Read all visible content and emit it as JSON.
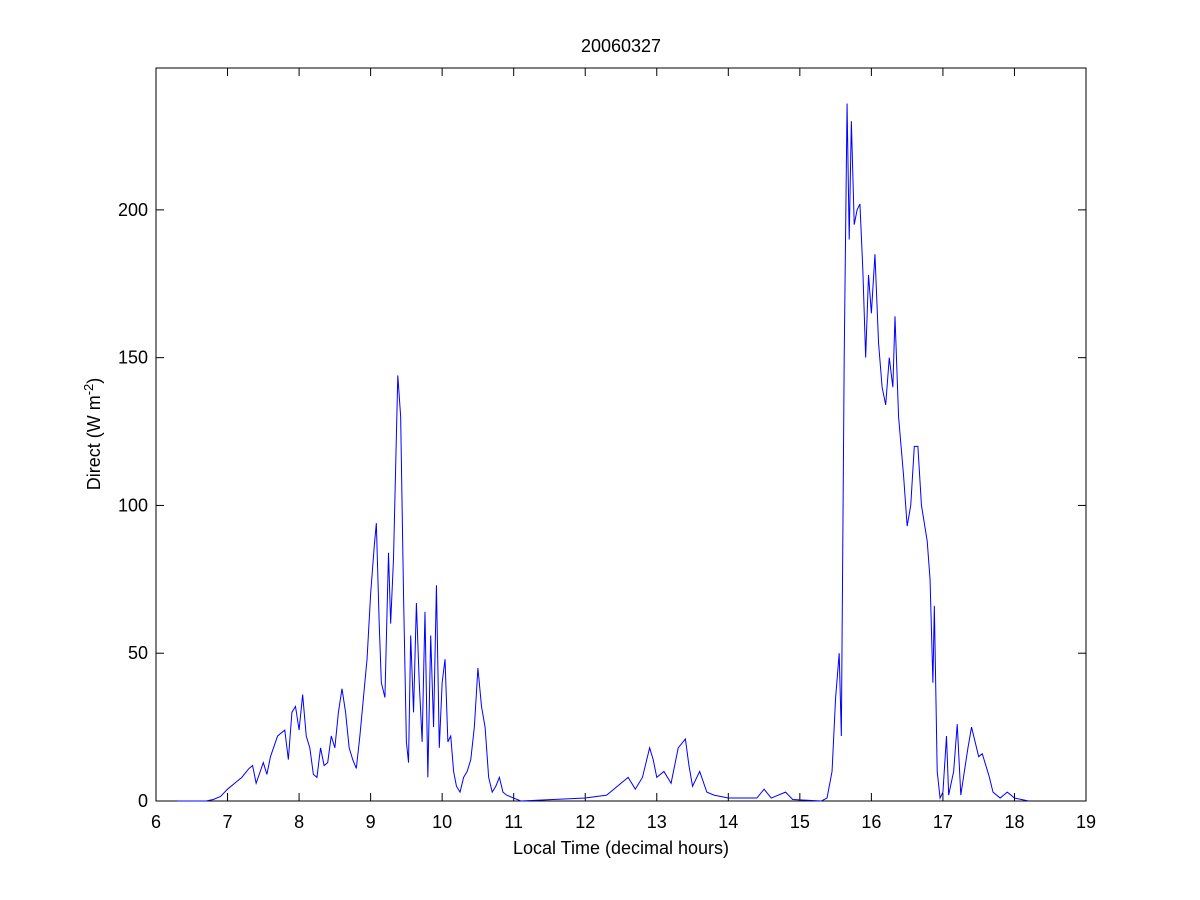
{
  "chart_data": {
    "type": "line",
    "title": "20060327",
    "xlabel": "Local Time (decimal hours)",
    "ylabel": {
      "text": "Direct (W m",
      "sup": "-2",
      "end": ")"
    },
    "x": [
      6.3,
      6.7,
      6.8,
      6.9,
      7.0,
      7.1,
      7.2,
      7.3,
      7.35,
      7.4,
      7.5,
      7.55,
      7.6,
      7.7,
      7.8,
      7.85,
      7.9,
      7.95,
      8.0,
      8.05,
      8.1,
      8.15,
      8.2,
      8.25,
      8.3,
      8.35,
      8.4,
      8.45,
      8.5,
      8.55,
      8.6,
      8.65,
      8.7,
      8.75,
      8.8,
      8.85,
      8.9,
      8.95,
      9.0,
      9.05,
      9.08,
      9.12,
      9.15,
      9.2,
      9.25,
      9.28,
      9.32,
      9.38,
      9.42,
      9.46,
      9.5,
      9.53,
      9.56,
      9.6,
      9.64,
      9.68,
      9.72,
      9.76,
      9.8,
      9.84,
      9.88,
      9.92,
      9.96,
      10.0,
      10.04,
      10.08,
      10.12,
      10.16,
      10.2,
      10.25,
      10.3,
      10.35,
      10.4,
      10.45,
      10.5,
      10.55,
      10.6,
      10.65,
      10.7,
      10.75,
      10.8,
      10.85,
      10.9,
      11.0,
      11.1,
      12.0,
      12.3,
      12.5,
      12.6,
      12.7,
      12.8,
      12.9,
      12.95,
      13.0,
      13.1,
      13.2,
      13.3,
      13.4,
      13.45,
      13.5,
      13.6,
      13.7,
      13.8,
      14.0,
      14.4,
      14.5,
      14.6,
      14.8,
      14.9,
      15.3,
      15.38,
      15.45,
      15.5,
      15.55,
      15.58,
      15.62,
      15.66,
      15.69,
      15.72,
      15.76,
      15.8,
      15.84,
      15.88,
      15.92,
      15.96,
      16.0,
      16.05,
      16.1,
      16.15,
      16.2,
      16.25,
      16.3,
      16.33,
      16.38,
      16.45,
      16.5,
      16.55,
      16.6,
      16.65,
      16.7,
      16.78,
      16.82,
      16.86,
      16.88,
      16.92,
      16.96,
      17.0,
      17.05,
      17.08,
      17.15,
      17.2,
      17.25,
      17.3,
      17.35,
      17.4,
      17.45,
      17.5,
      17.55,
      17.6,
      17.65,
      17.7,
      17.8,
      17.9,
      18.0,
      18.2
    ],
    "series": [
      {
        "name": "Direct",
        "color": "#0000ff",
        "values": [
          0,
          0,
          0.5,
          1.5,
          4,
          6,
          8,
          11,
          12,
          6,
          13,
          9,
          15,
          22,
          24,
          14,
          30,
          32,
          24,
          36,
          22,
          18,
          9,
          8,
          18,
          12,
          13,
          22,
          18,
          30,
          38,
          30,
          18,
          14,
          11,
          22,
          35,
          48,
          70,
          86,
          94,
          60,
          40,
          35,
          84,
          60,
          82,
          144,
          130,
          70,
          20,
          13,
          56,
          30,
          67,
          40,
          20,
          64,
          8,
          56,
          25,
          73,
          18,
          40,
          48,
          20,
          22,
          10,
          5,
          3,
          8,
          10,
          14,
          25,
          45,
          32,
          25,
          8,
          3,
          5,
          8,
          3,
          2,
          1,
          0,
          1,
          2,
          6,
          8,
          4,
          8,
          18,
          14,
          8,
          10,
          6,
          18,
          21,
          12,
          5,
          10,
          3,
          2,
          1,
          1,
          4,
          1,
          3,
          0.5,
          0,
          1,
          10,
          35,
          50,
          22,
          150,
          236,
          190,
          230,
          195,
          200,
          202,
          180,
          150,
          178,
          165,
          185,
          155,
          140,
          134,
          150,
          140,
          164,
          130,
          110,
          93,
          100,
          120,
          120,
          100,
          88,
          75,
          40,
          66,
          10,
          1,
          3,
          22,
          2,
          10,
          26,
          2,
          10,
          18,
          25,
          20,
          15,
          16,
          12,
          8,
          3,
          1,
          3,
          1,
          0
        ]
      }
    ],
    "xlim": [
      6,
      19
    ],
    "xticks": [
      6,
      7,
      8,
      9,
      10,
      11,
      12,
      13,
      14,
      15,
      16,
      17,
      18,
      19
    ],
    "ylim": [
      0,
      248
    ],
    "yticks": [
      0,
      50,
      100,
      150,
      200
    ]
  }
}
